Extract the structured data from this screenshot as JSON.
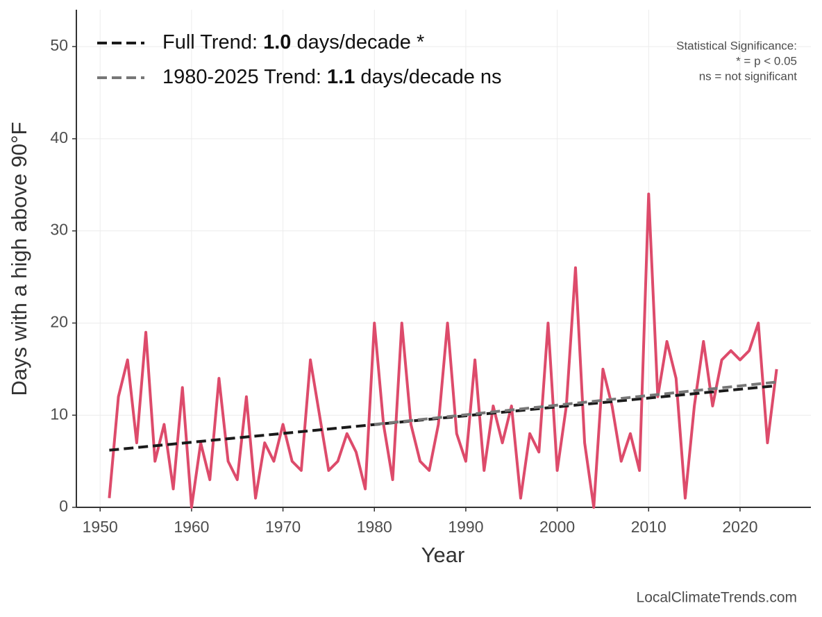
{
  "chart_data": {
    "type": "line",
    "xlabel": "Year",
    "ylabel": "Days with a high above 90°F",
    "xlim": [
      1947.4,
      2027.75
    ],
    "xticks": [
      1950,
      1960,
      1970,
      1980,
      1990,
      2000,
      2010,
      2020
    ],
    "ylim": [
      0,
      54
    ],
    "yticks": [
      0,
      10,
      20,
      30,
      40,
      50
    ],
    "grid": true,
    "series": [
      {
        "color": "#dd4b6b",
        "x": [
          1951,
          1952,
          1953,
          1954,
          1955,
          1956,
          1957,
          1958,
          1959,
          1960,
          1961,
          1962,
          1963,
          1964,
          1965,
          1966,
          1967,
          1968,
          1969,
          1970,
          1971,
          1972,
          1973,
          1974,
          1975,
          1976,
          1977,
          1978,
          1979,
          1980,
          1981,
          1982,
          1983,
          1984,
          1985,
          1986,
          1987,
          1988,
          1989,
          1990,
          1991,
          1992,
          1993,
          1994,
          1995,
          1996,
          1997,
          1998,
          1999,
          2000,
          2001,
          2002,
          2003,
          2004,
          2005,
          2006,
          2007,
          2008,
          2009,
          2010,
          2011,
          2012,
          2013,
          2014,
          2015,
          2016,
          2017,
          2018,
          2019,
          2020,
          2021,
          2022,
          2023,
          2024
        ],
        "values": [
          1,
          12,
          16,
          7,
          19,
          5,
          9,
          2,
          13,
          0,
          7,
          3,
          14,
          5,
          3,
          12,
          1,
          7,
          5,
          9,
          5,
          4,
          16,
          10,
          4,
          5,
          8,
          6,
          2,
          20,
          9,
          3,
          20,
          9,
          5,
          4,
          9,
          20,
          8,
          5,
          16,
          4,
          11,
          7,
          11,
          1,
          8,
          6,
          20,
          4,
          11,
          26,
          7,
          0,
          15,
          11,
          5,
          8,
          4,
          34,
          12,
          18,
          14,
          1,
          11,
          18,
          11,
          16,
          17,
          16,
          17,
          20,
          7,
          15
        ]
      },
      {
        "name_parts": [
          "Full Trend: ",
          "1.0",
          " days/decade *"
        ],
        "color": "#1a1a1a",
        "dashed": true,
        "x": [
          1951,
          2024
        ],
        "values": [
          6.2,
          13.2
        ]
      },
      {
        "name_parts": [
          "1980-2025 Trend: ",
          "1.1",
          " days/decade ns"
        ],
        "color": "#777777",
        "dashed": true,
        "x": [
          1980,
          2024
        ],
        "values": [
          9.0,
          13.6
        ]
      }
    ],
    "significance_note": [
      "Statistical Significance:",
      "* = p < 0.05",
      "ns = not significant"
    ],
    "source": "LocalClimateTrends.com"
  }
}
